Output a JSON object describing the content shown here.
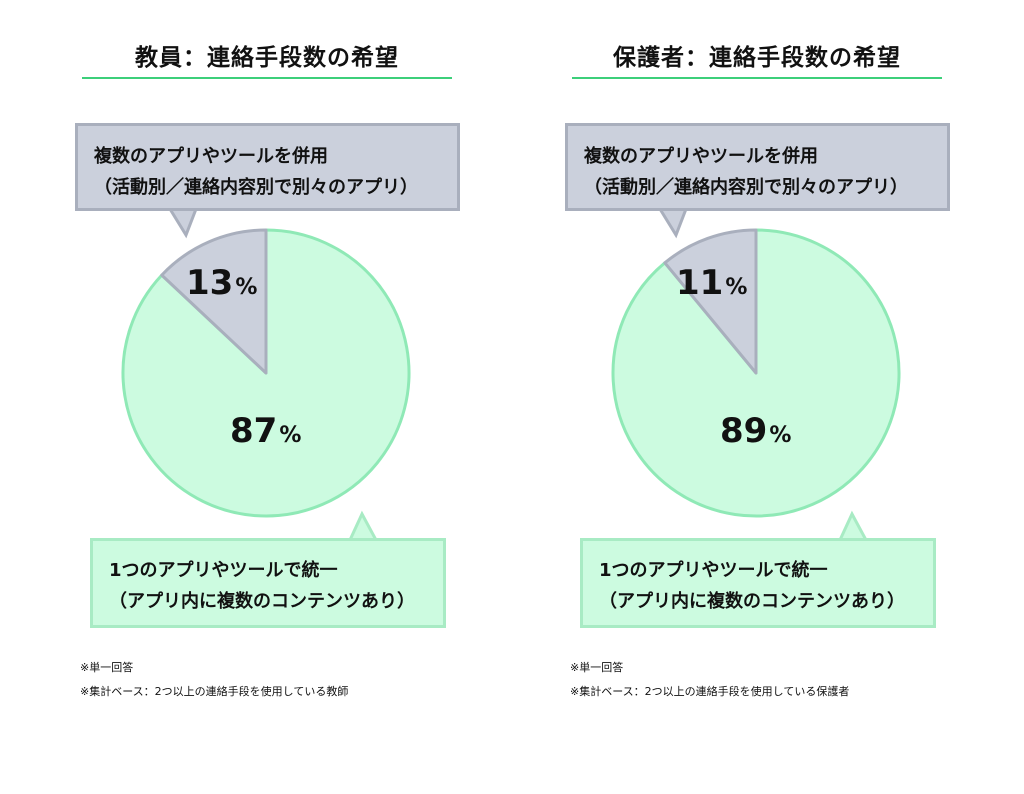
{
  "chart_data": [
    {
      "type": "pie",
      "title": "教員：連絡手段数の希望",
      "slices": [
        {
          "label_line1": "1つのアプリやツールで統一",
          "label_line2": "（アプリ内に複数のコンテンツあり）",
          "value": 87,
          "display": "87",
          "color": "#ccfbe0",
          "stroke": "#8fe9b6"
        },
        {
          "label_line1": "複数のアプリやツールを併用",
          "label_line2": "（活動別／連絡内容別で別々のアプリ）",
          "value": 13,
          "display": "13",
          "color": "#cbd0dc",
          "stroke": "#a9afbd"
        }
      ],
      "unit": "%",
      "notes": [
        "※単一回答",
        "※集計ベース：2つ以上の連絡手段を使用している教師"
      ]
    },
    {
      "type": "pie",
      "title": "保護者：連絡手段数の希望",
      "slices": [
        {
          "label_line1": "1つのアプリやツールで統一",
          "label_line2": "（アプリ内に複数のコンテンツあり）",
          "value": 89,
          "display": "89",
          "color": "#ccfbe0",
          "stroke": "#8fe9b6"
        },
        {
          "label_line1": "複数のアプリやツールを併用",
          "label_line2": "（活動別／連絡内容別で別々のアプリ）",
          "value": 11,
          "display": "11",
          "color": "#cbd0dc",
          "stroke": "#a9afbd"
        }
      ],
      "unit": "%",
      "notes": [
        "※単一回答",
        "※集計ベース：2つ以上の連絡手段を使用している保護者"
      ]
    }
  ]
}
